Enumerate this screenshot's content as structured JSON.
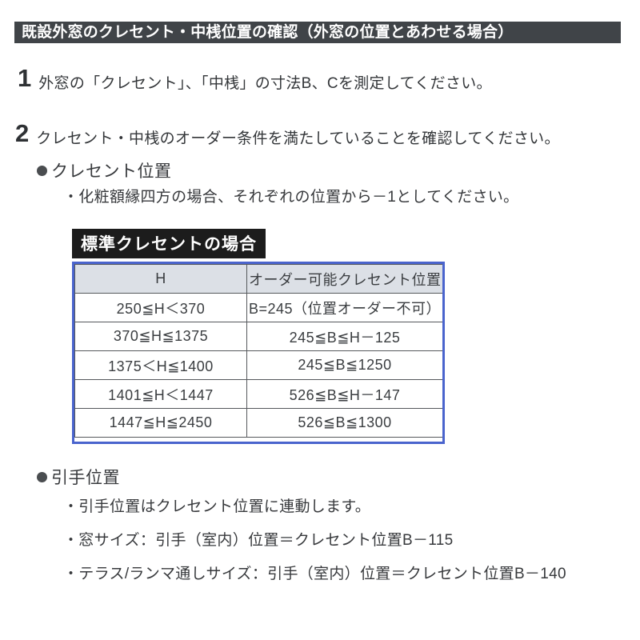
{
  "colors": {
    "title_bar_bg": "#404448",
    "caption_bg": "#1c1c1c",
    "table_border_blue": "#4a64cd",
    "table_header_bg": "#dce0e6",
    "body_text": "#37393c"
  },
  "title_bar": {
    "text": "既設外窓のクレセント・中桟位置の確認（外窓の位置とあわせる場合）"
  },
  "steps": [
    {
      "number": "1",
      "text": "外窓の「クレセント」、「中桟」の寸法B、Cを測定してください。"
    },
    {
      "number": "2",
      "text": "クレセント・中桟のオーダー条件を満たしていることを確認してください。"
    }
  ],
  "crescent_section": {
    "heading": "クレセント位置",
    "note": "・化粧額縁四方の場合、それぞれの位置から－1としてください。",
    "table_caption": "標準クレセントの場合",
    "table": {
      "headers": [
        "H",
        "オーダー可能クレセント位置"
      ],
      "rows": [
        {
          "h": "250≦H＜370",
          "pos": "B=245（位置オーダー不可）"
        },
        {
          "h": "370≦H≦1375",
          "pos": "245≦B≦H－125"
        },
        {
          "h": "1375＜H≦1400",
          "pos": "245≦B≦1250"
        },
        {
          "h": "1401≦H＜1447",
          "pos": "526≦B≦H－147"
        },
        {
          "h": "1447≦H≦2450",
          "pos": "526≦B≦1300"
        }
      ]
    }
  },
  "handle_section": {
    "heading": "引手位置",
    "notes": [
      "・引手位置はクレセント位置に連動します。",
      "・窓サイズ：引手（室内）位置＝クレセント位置B－115",
      "・テラス/ランマ通しサイズ：引手（室内）位置＝クレセント位置B－140"
    ]
  }
}
